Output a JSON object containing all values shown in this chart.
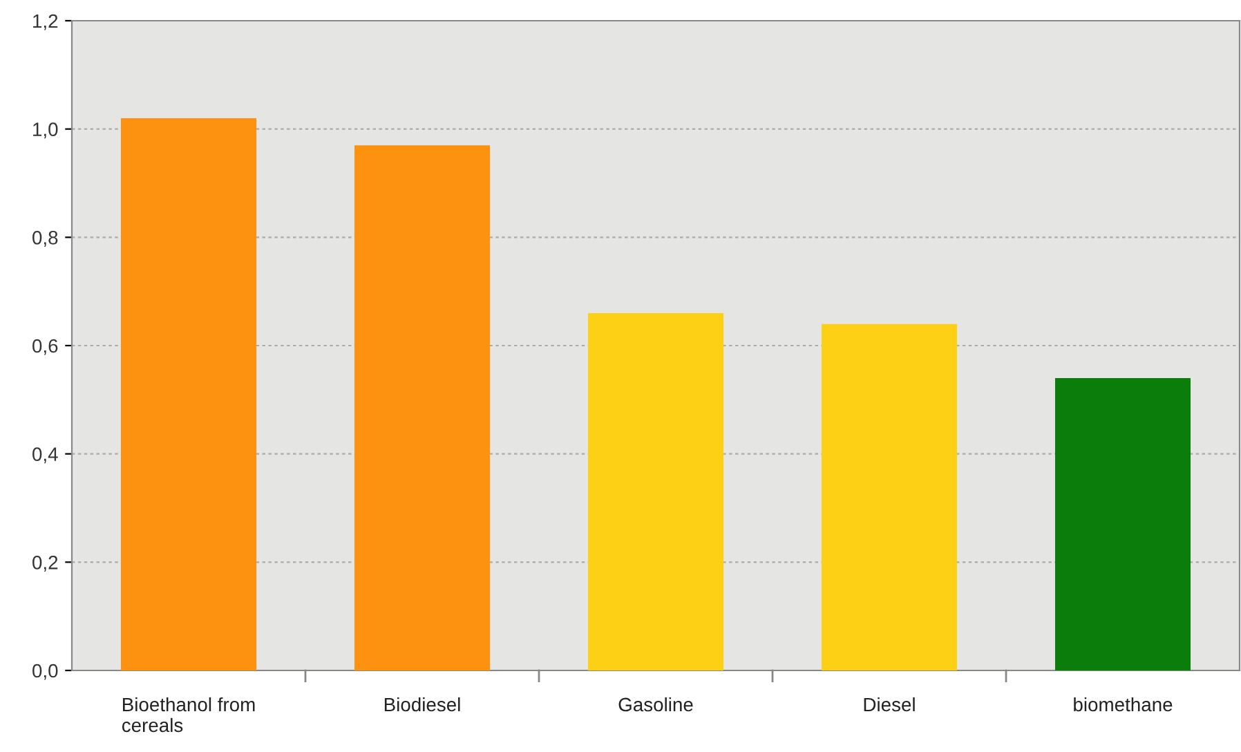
{
  "chart_data": {
    "type": "bar",
    "categories": [
      "Bioethanol from\ncereals",
      "Biodiesel",
      "Gasoline",
      "Diesel",
      "biomethane"
    ],
    "values": [
      1.02,
      0.97,
      0.66,
      0.64,
      0.54
    ],
    "colors": [
      "#fd9211",
      "#fd9211",
      "#fdd016",
      "#fdd016",
      "#0b7d0b"
    ],
    "ylim": [
      0,
      1.2
    ],
    "yticks": [
      {
        "value": 0,
        "label": "0,0"
      },
      {
        "value": 0.2,
        "label": "0,2"
      },
      {
        "value": 0.4,
        "label": "0,4"
      },
      {
        "value": 0.6,
        "label": "0,6"
      },
      {
        "value": 0.8,
        "label": "0,8"
      },
      {
        "value": 1.0,
        "label": "1,0"
      },
      {
        "value": 1.2,
        "label": "1,2"
      }
    ],
    "grid": "y"
  }
}
